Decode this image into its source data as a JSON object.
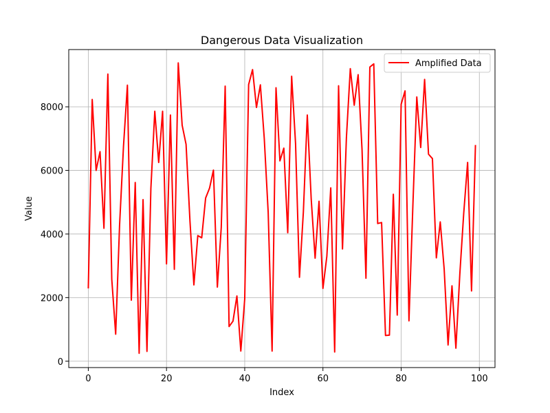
{
  "chart_data": {
    "type": "line",
    "title": "Dangerous Data Visualization",
    "xlabel": "Index",
    "ylabel": "Value",
    "xlim": [
      -5,
      104
    ],
    "ylim": [
      -200,
      9800
    ],
    "xticks": [
      0,
      20,
      40,
      60,
      80,
      100
    ],
    "yticks": [
      0,
      2000,
      4000,
      6000,
      8000
    ],
    "grid": true,
    "legend_position": "top-right",
    "series": [
      {
        "name": "Amplified Data",
        "color": "#ff0000",
        "x": [
          0,
          1,
          2,
          3,
          4,
          5,
          6,
          7,
          8,
          9,
          10,
          11,
          12,
          13,
          14,
          15,
          16,
          17,
          18,
          19,
          20,
          21,
          22,
          23,
          24,
          25,
          26,
          27,
          28,
          29,
          30,
          31,
          32,
          33,
          34,
          35,
          36,
          37,
          38,
          39,
          40,
          41,
          42,
          43,
          44,
          45,
          46,
          47,
          48,
          49,
          50,
          51,
          52,
          53,
          54,
          55,
          56,
          57,
          58,
          59,
          60,
          61,
          62,
          63,
          64,
          65,
          66,
          67,
          68,
          69,
          70,
          71,
          72,
          73,
          74,
          75,
          76,
          77,
          78,
          79,
          80,
          81,
          82,
          83,
          84,
          85,
          86,
          87,
          88,
          89,
          90,
          91,
          92,
          93,
          94,
          95,
          96,
          97,
          98,
          99
        ],
        "values": [
          2290,
          8230,
          6000,
          6590,
          4180,
          9030,
          2580,
          850,
          4280,
          6760,
          8680,
          1920,
          5620,
          250,
          5080,
          310,
          5430,
          7860,
          6250,
          7860,
          3060,
          7740,
          2890,
          9380,
          7420,
          6820,
          4400,
          2400,
          3950,
          3880,
          5130,
          5440,
          6010,
          2330,
          4210,
          8650,
          1090,
          1260,
          2050,
          320,
          1960,
          8700,
          9170,
          7980,
          8690,
          7000,
          4680,
          320,
          8600,
          6300,
          6700,
          4040,
          8960,
          6840,
          2640,
          4700,
          7740,
          5100,
          3240,
          5030,
          2290,
          3300,
          5450,
          290,
          8660,
          3530,
          7020,
          9200,
          8050,
          9010,
          6650,
          2610,
          9250,
          9350,
          4330,
          4360,
          810,
          820,
          5250,
          1450,
          8080,
          8500,
          1270,
          4900,
          8310,
          6720,
          8860,
          6510,
          6370,
          3250,
          4380,
          2900,
          510,
          2370,
          410,
          2730,
          4650,
          6250,
          2210,
          6800
        ]
      }
    ]
  }
}
